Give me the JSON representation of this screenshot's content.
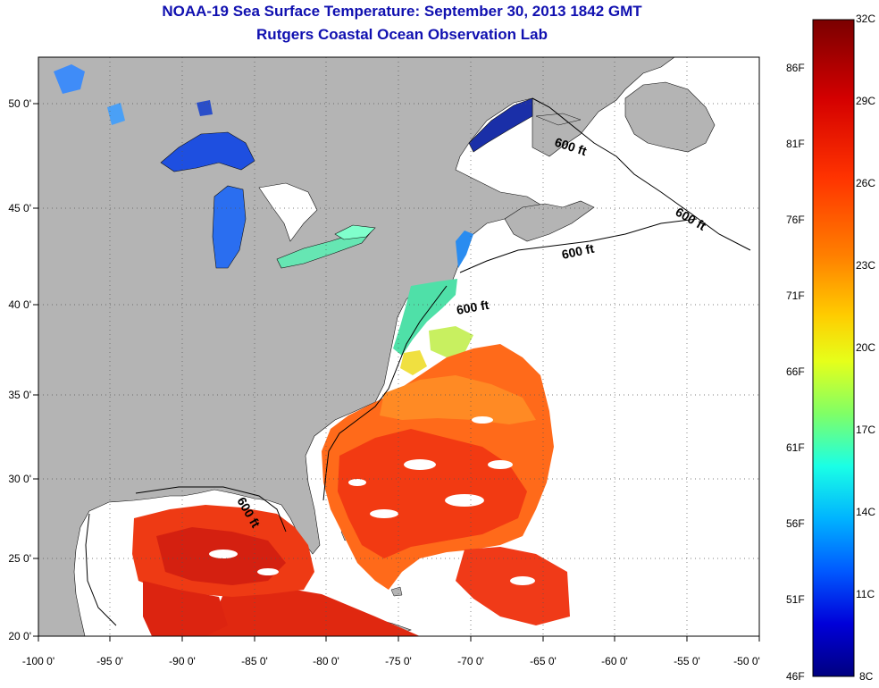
{
  "header": {
    "title": "NOAA-19 Sea Surface Temperature:  September 30, 2013 1842 GMT",
    "subtitle": "Rutgers Coastal Ocean Observation Lab"
  },
  "axes": {
    "x_ticks": [
      "-100 0'",
      "-95 0'",
      "-90 0'",
      "-85 0'",
      "-80 0'",
      "-75 0'",
      "-70 0'",
      "-65 0'",
      "-60 0'",
      "-55 0'",
      "-50 0'"
    ],
    "y_ticks": [
      "20 0'",
      "25 0'",
      "30 0'",
      "35 0'",
      "40 0'",
      "45 0'",
      "50 0'"
    ],
    "lon_range": [
      -100,
      -50
    ],
    "lat_range": [
      20,
      52
    ]
  },
  "contours": {
    "label": "600 ft",
    "count": 5
  },
  "colorbar": {
    "celsius_labels": [
      "32C",
      "29C",
      "26C",
      "23C",
      "20C",
      "17C",
      "14C",
      "11C",
      "8C"
    ],
    "fahrenheit_labels": [
      "86F",
      "81F",
      "76F",
      "71F",
      "66F",
      "61F",
      "56F",
      "51F",
      "46F"
    ],
    "min_c": 8,
    "max_c": 32,
    "colors": [
      "#7a0000",
      "#d40000",
      "#ff3300",
      "#ff8000",
      "#ffcc00",
      "#e6ff1a",
      "#80ff66",
      "#1affe6",
      "#00b3ff",
      "#0059ff",
      "#0000d9",
      "#000080"
    ]
  },
  "colors": {
    "land": "#b4b4b4",
    "no_data": "#ffffff",
    "title": "#1010b0"
  }
}
